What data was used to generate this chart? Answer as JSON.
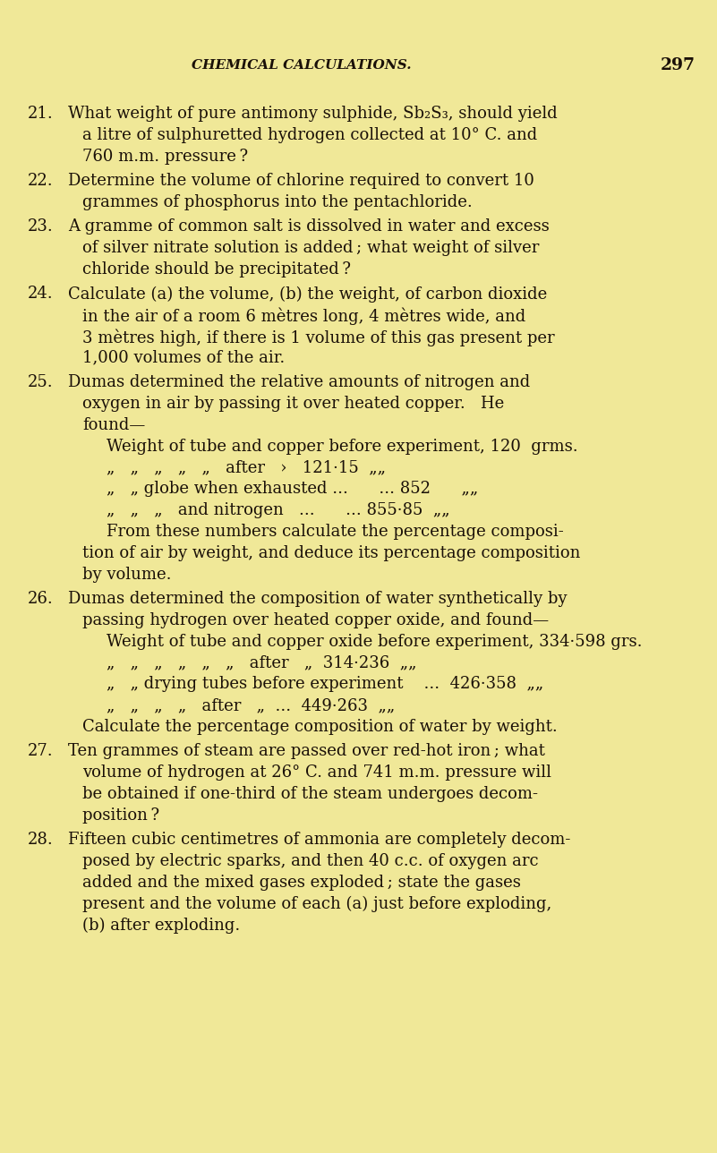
{
  "background_color": "#f0e898",
  "font_color": "#1a1008",
  "title": "CHEMICAL CALCULATIONS.",
  "page_number": "297",
  "figsize": [
    8.01,
    12.88
  ],
  "dpi": 100,
  "text_blocks": [
    {
      "num": "21.",
      "lines": [
        "What weight of pure antimony sulphide, Sb₂S₃, should yield",
        "a litre of sulphuretted hydrogen collected at 10° C. and",
        "760 m.m. pressure ?"
      ]
    },
    {
      "num": "22.",
      "lines": [
        "Determine the volume of chlorine required to convert 10",
        "grammes of phosphorus into the pentachloride."
      ]
    },
    {
      "num": "23.",
      "lines": [
        "A gramme of common salt is dissolved in water and excess",
        "of silver nitrate solution is added ; what weight of silver",
        "chloride should be precipitated ?"
      ]
    },
    {
      "num": "24.",
      "lines": [
        "Calculate (a) the volume, (b) the weight, of carbon dioxide",
        "in the air of a room 6 mètres long, 4 mètres wide, and",
        "3 mètres high, if there is 1 volume of this gas present per",
        "1,000 volumes of the air."
      ]
    },
    {
      "num": "25.",
      "lines": [
        "Dumas determined the relative amounts of nitrogen and",
        "oxygen in air by passing it over heated copper.   He",
        "found—",
        {
          "indent": true,
          "text": "Weight of tube and copper before experiment, 120  grms."
        },
        {
          "indent": true,
          "text": "„   „   „   „   „   after   ›   121·15  „„"
        },
        {
          "indent": true,
          "text": "„   „ globe when exhausted ...      ... 852      „„"
        },
        {
          "indent": true,
          "text": "„   „   „   and nitrogen   ...      ... 855·85  „„"
        },
        {
          "indent": false,
          "text": "From these numbers calculate the percentage composi-"
        },
        "tion of air by weight, and deduce its percentage composition",
        "by volume."
      ]
    },
    {
      "num": "26.",
      "lines": [
        "Dumas determined the composition of water synthetically by",
        "passing hydrogen over heated copper oxide, and found—",
        {
          "indent": true,
          "text": "Weight of tube and copper oxide before experiment, 334·598 grs."
        },
        {
          "indent": true,
          "text": "„   „   „   „   „   „   after   „  314·236  „„"
        },
        {
          "indent": true,
          "text": "„   „ drying tubes before experiment    ...  426·358  „„"
        },
        {
          "indent": true,
          "text": "„   „   „   „   after   „  ...  449·263  „„"
        },
        "Calculate the percentage composition of water by weight."
      ]
    },
    {
      "num": "27.",
      "lines": [
        "Ten grammes of steam are passed over red-hot iron ; what",
        "volume of hydrogen at 26° C. and 741 m.m. pressure will",
        "be obtained if one-third of the steam undergoes decom-",
        "position ?"
      ]
    },
    {
      "num": "28.",
      "lines": [
        "Fifteen cubic centimetres of ammonia are completely decom-",
        "posed by electric sparks, and then 40 c.c. of oxygen arc",
        "added and the mixed gases exploded ; state the gases",
        "present and the volume of each (a) just before exploding,",
        "(b) after exploding."
      ]
    }
  ]
}
